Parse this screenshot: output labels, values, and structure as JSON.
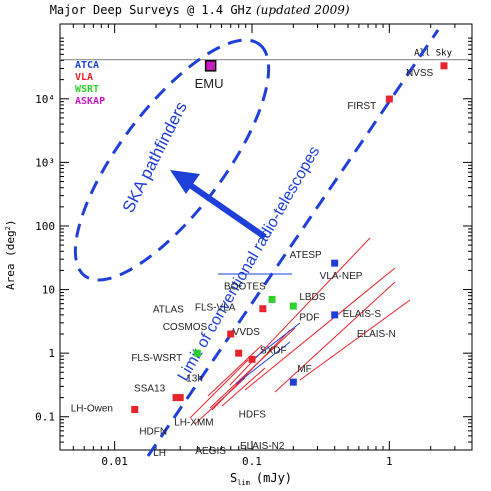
{
  "chart_data": {
    "type": "scatter",
    "title": "Major Deep Surveys @ 1.4 GHz",
    "title_note": "(updated 2009)",
    "xlabel": "S",
    "xlabel_sub": "lim",
    "xlabel_unit": "(mJy)",
    "ylabel": "Area (deg",
    "ylabel_sup": "2",
    "ylabel_close": ")",
    "x_scale": "log",
    "y_scale": "log",
    "xlim": [
      0.004,
      4
    ],
    "ylim": [
      0.03,
      150000
    ],
    "x_ticks": [
      {
        "value": 0.01,
        "label": "0.01"
      },
      {
        "value": 0.1,
        "label": "0.1"
      },
      {
        "value": 1,
        "label": "1"
      }
    ],
    "y_ticks": [
      {
        "value": 0.1,
        "label": "0.1"
      },
      {
        "value": 1,
        "label": "1"
      },
      {
        "value": 10,
        "label": "10"
      },
      {
        "value": 100,
        "label": "100"
      },
      {
        "value": 1000,
        "label": "10³"
      },
      {
        "value": 10000,
        "label": "10⁴"
      }
    ],
    "all_sky": {
      "label": "All Sky",
      "value": 41253
    },
    "legend": {
      "placement": "top-left",
      "entries": [
        {
          "label": "ATCA",
          "color": "#1f3fd9"
        },
        {
          "label": "VLA",
          "color": "#e8242c"
        },
        {
          "label": "WSRT",
          "color": "#2fd12c"
        },
        {
          "label": "ASKAP",
          "color": "#cc19c8"
        }
      ]
    },
    "points": [
      {
        "label": "EMU",
        "x": 0.05,
        "y": 33000,
        "instrument": "ASKAP",
        "color": "#cc19c8"
      },
      {
        "label": "NVSS",
        "x": 2.5,
        "y": 33000,
        "instrument": "VLA",
        "color": "#e8242c"
      },
      {
        "label": "FIRST",
        "x": 1.0,
        "y": 9900,
        "instrument": "VLA",
        "color": "#e8242c"
      },
      {
        "label": "ATESP",
        "x": 0.4,
        "y": 26,
        "instrument": "ATCA",
        "color": "#1f3fd9"
      },
      {
        "label": "VLA-NEP",
        "x": 0.4,
        "y": 26,
        "instrument": "VLA",
        "color": "#e8242c"
      },
      {
        "label": "BOOTES",
        "x": 0.14,
        "y": 7,
        "instrument": "WSRT",
        "color": "#2fd12c"
      },
      {
        "label": "ATLAS",
        "x": 0.12,
        "y": 5,
        "instrument": "VLA",
        "color": "#e8242c"
      },
      {
        "label": "FLS-VLA",
        "x": 0.12,
        "y": 5,
        "instrument": "VLA",
        "color": "#e8242c"
      },
      {
        "label": "LBDS",
        "x": 0.2,
        "y": 5.5,
        "instrument": "WSRT",
        "color": "#2fd12c"
      },
      {
        "label": "ELAIS-S",
        "x": 0.4,
        "y": 4,
        "instrument": "ATCA",
        "color": "#1f3fd9"
      },
      {
        "label": "ELAIS-N",
        "x": 0.6,
        "y": 3,
        "instrument": "VLA",
        "color": "#e8242c"
      },
      {
        "label": "PDF",
        "x": 0.2,
        "y": 3.5,
        "instrument": "ATCA",
        "color": "#1f3fd9"
      },
      {
        "label": "COSMOS",
        "x": 0.07,
        "y": 2,
        "instrument": "VLA",
        "color": "#e8242c"
      },
      {
        "label": "FLS-WSRT",
        "x": 0.04,
        "y": 1,
        "instrument": "WSRT",
        "color": "#2fd12c"
      },
      {
        "label": "VVDS",
        "x": 0.08,
        "y": 1,
        "instrument": "VLA",
        "color": "#e8242c"
      },
      {
        "label": "SXDF",
        "x": 0.1,
        "y": 0.8,
        "instrument": "VLA",
        "color": "#e8242c"
      },
      {
        "label": "MF",
        "x": 0.2,
        "y": 0.35,
        "instrument": "ATCA",
        "color": "#1f3fd9"
      },
      {
        "label": "SSA13",
        "x": 0.028,
        "y": 0.2,
        "instrument": "VLA",
        "color": "#e8242c"
      },
      {
        "label": "13h",
        "x": 0.03,
        "y": 0.2,
        "instrument": "VLA",
        "color": "#e8242c"
      },
      {
        "label": "LH-Owen",
        "x": 0.014,
        "y": 0.13,
        "instrument": "VLA",
        "color": "#e8242c"
      },
      {
        "label": "LH-XMM",
        "x": 0.03,
        "y": 0.13,
        "instrument": "VLA",
        "color": "#e8242c"
      },
      {
        "label": "HDFS",
        "x": 0.08,
        "y": 0.13,
        "instrument": "ATCA",
        "color": "#1f3fd9"
      },
      {
        "label": "HDFN",
        "x": 0.04,
        "y": 0.07,
        "instrument": "VLA",
        "color": "#e8242c"
      },
      {
        "label": "ELAIS-N2",
        "x": 0.1,
        "y": 0.06,
        "instrument": "VLA",
        "color": "#e8242c"
      },
      {
        "label": "AEGIS",
        "x": 0.04,
        "y": 0.05,
        "instrument": "VLA",
        "color": "#e8242c"
      },
      {
        "label": "LH",
        "x": 0.03,
        "y": 0.04,
        "instrument": "VLA",
        "color": "#e8242c"
      }
    ],
    "annotations": [
      {
        "text": "SKA pathfinders",
        "color": "#1f3fd9"
      },
      {
        "text": "Limit of conventional radio-telescopes",
        "color": "#1f3fd9"
      }
    ],
    "colors": {
      "axis": "#000000",
      "accent": "#1f3fd9",
      "trace": "#e8242c",
      "all_sky_line": "#999999"
    }
  }
}
